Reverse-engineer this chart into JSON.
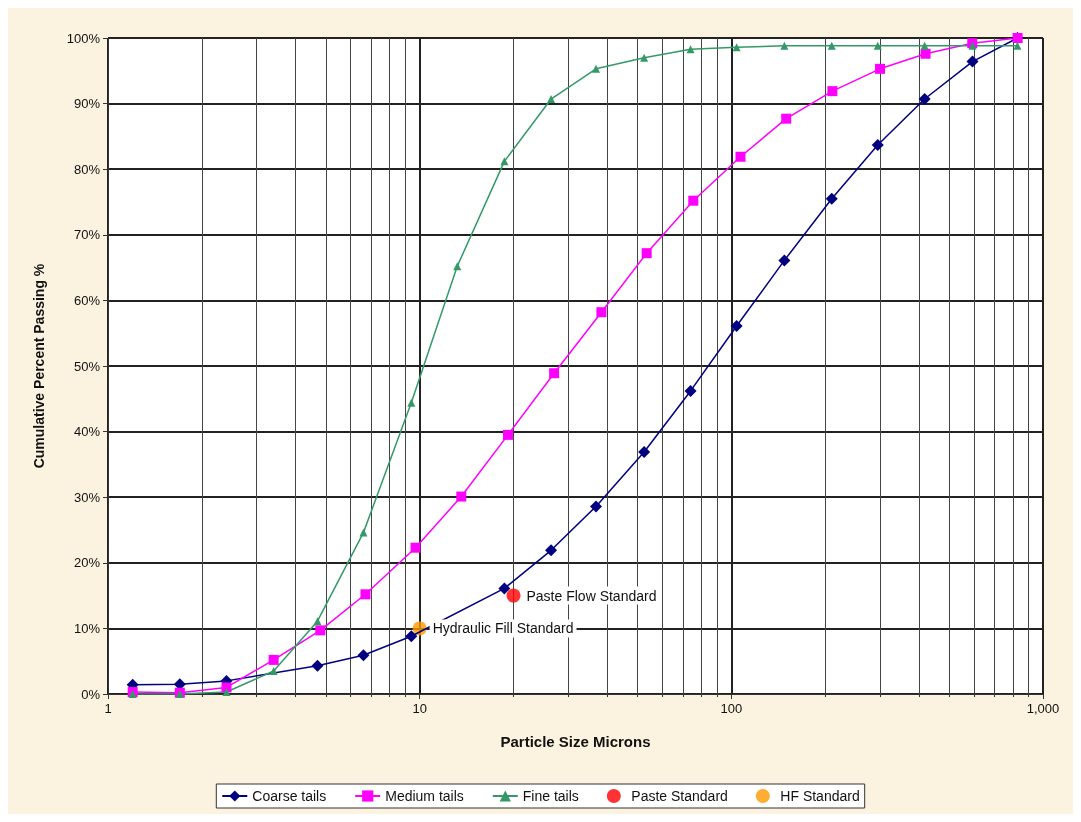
{
  "chart_data": {
    "type": "line",
    "xlabel": "Particle Size Microns",
    "ylabel": "Cumulative Percent Passing %",
    "log": "x",
    "grid": true,
    "legend": "bottom",
    "xlim": [
      1,
      1000
    ],
    "xticks": [
      1,
      10,
      100,
      {
        "value": 1000,
        "label": "1,000"
      }
    ],
    "ylim": [
      0,
      100
    ],
    "yticks": [
      {
        "value": 0,
        "label": "0%"
      },
      {
        "value": 10,
        "label": "10%"
      },
      {
        "value": 20,
        "label": "20%"
      },
      {
        "value": 30,
        "label": "30%"
      },
      {
        "value": 40,
        "label": "40%"
      },
      {
        "value": 50,
        "label": "50%"
      },
      {
        "value": 60,
        "label": "60%"
      },
      {
        "value": 70,
        "label": "70%"
      },
      {
        "value": 80,
        "label": "80%"
      },
      {
        "value": 90,
        "label": "90%"
      },
      {
        "value": 100,
        "label": "100%"
      }
    ],
    "series": [
      {
        "name": "Coarse tails",
        "color": "#000080",
        "marker": "diamond",
        "x": [
          1.2,
          1.7,
          2.4,
          4.7,
          6.6,
          9.4,
          18.7,
          26.4,
          36.8,
          52.5,
          74,
          104,
          148,
          210,
          295,
          417,
          594,
          828
        ],
        "values": [
          1.4,
          1.5,
          2,
          4.3,
          5.9,
          8.8,
          16.1,
          21.9,
          28.6,
          36.9,
          46.2,
          56.1,
          66.1,
          75.5,
          83.7,
          90.7,
          96.4,
          100
        ]
      },
      {
        "name": "Medium tails",
        "color": "#ff00ff",
        "marker": "square",
        "x": [
          1.2,
          1.7,
          2.4,
          3.4,
          4.8,
          6.7,
          9.7,
          13.6,
          19.2,
          27,
          38.3,
          53.5,
          75.5,
          107,
          150,
          211,
          300,
          420,
          593,
          829
        ],
        "values": [
          0.3,
          0.2,
          1,
          5.2,
          9.7,
          15.2,
          22.3,
          30.1,
          39.5,
          48.9,
          58.2,
          67.2,
          75.2,
          81.9,
          87.7,
          91.9,
          95.3,
          97.6,
          99.2,
          100
        ]
      },
      {
        "name": "Fine tails",
        "color": "#339966",
        "marker": "triangle",
        "x": [
          1.2,
          1.7,
          2.4,
          3.4,
          4.7,
          6.6,
          9.4,
          13.2,
          18.7,
          26.4,
          36.8,
          52.5,
          74,
          104,
          148,
          210,
          295,
          417,
          594,
          828
        ],
        "values": [
          0,
          0,
          0.3,
          3.5,
          11.1,
          24.6,
          44.4,
          65.2,
          81.2,
          90.7,
          95.3,
          97,
          98.3,
          98.6,
          98.8,
          98.8,
          98.8,
          98.8,
          98.8,
          98.8
        ]
      },
      {
        "name": "Paste Standard",
        "type": "scatter",
        "color": "#ff0000",
        "marker": "circle",
        "x": [
          20
        ],
        "values": [
          15
        ]
      },
      {
        "name": "HF Standard",
        "type": "scatter",
        "color": "#ff9900",
        "marker": "circle",
        "x": [
          10
        ],
        "values": [
          10
        ]
      }
    ],
    "annotations": [
      {
        "text": "Paste Flow Standard",
        "x": 20,
        "y": 15
      },
      {
        "text": "Hydraulic Fill Standard",
        "x": 10,
        "y": 10
      }
    ]
  }
}
